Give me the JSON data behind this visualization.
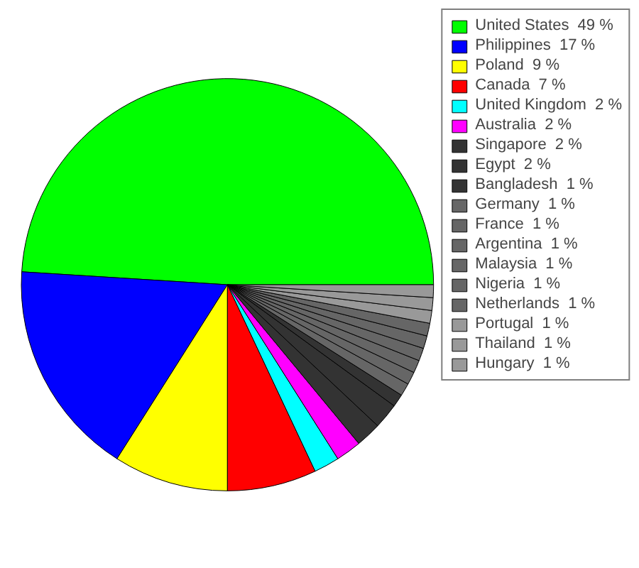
{
  "chart_data": {
    "type": "pie",
    "categories": [
      "United States",
      "Philippines",
      "Poland",
      "Canada",
      "United Kingdom",
      "Australia",
      "Singapore",
      "Egypt",
      "Bangladesh",
      "Germany",
      "France",
      "Argentina",
      "Malaysia",
      "Nigeria",
      "Netherlands",
      "Portugal",
      "Thailand",
      "Hungary"
    ],
    "values": [
      49,
      17,
      9,
      7,
      2,
      2,
      2,
      2,
      1,
      1,
      1,
      1,
      1,
      1,
      1,
      1,
      1,
      1
    ],
    "value_labels": [
      "49 %",
      "17 %",
      "9 %",
      "7 %",
      "2 %",
      "2 %",
      "2 %",
      "2 %",
      "1 %",
      "1 %",
      "1 %",
      "1 %",
      "1 %",
      "1 %",
      "1 %",
      "1 %",
      "1 %",
      "1 %"
    ],
    "colors": [
      "#00ff00",
      "#0000ff",
      "#ffff00",
      "#ff0000",
      "#00ffff",
      "#ff00ff",
      "#333333",
      "#333333",
      "#333333",
      "#666666",
      "#666666",
      "#666666",
      "#666666",
      "#666666",
      "#666666",
      "#999999",
      "#999999",
      "#999999"
    ],
    "legend": "right"
  }
}
